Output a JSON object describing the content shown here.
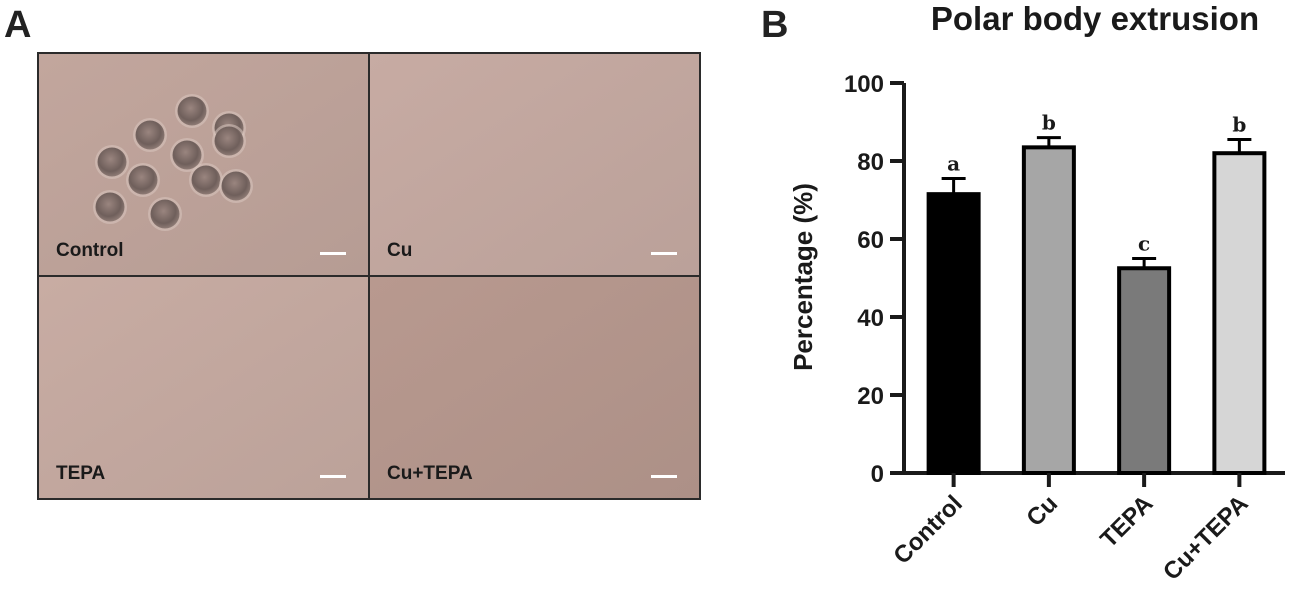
{
  "panel_a": {
    "letter": "A",
    "images": [
      {
        "label": "Control",
        "bg": "#c2a69d"
      },
      {
        "label": "Cu",
        "bg": "#c7aba3"
      },
      {
        "label": "TEPA",
        "bg": "#c8aca3"
      },
      {
        "label": "Cu+TEPA",
        "bg": "#b8998f"
      }
    ]
  },
  "panel_b": {
    "letter": "B"
  },
  "chart_data": {
    "type": "bar",
    "title": "Polar body extrusion",
    "xlabel": "",
    "ylabel": "Percentage (%)",
    "ylim": [
      0,
      100
    ],
    "yticks": [
      0,
      20,
      40,
      60,
      80,
      100
    ],
    "categories": [
      "Control",
      "Cu",
      "TEPA",
      "Cu+TEPA"
    ],
    "values": [
      71.5,
      83.5,
      52.5,
      82
    ],
    "errors": [
      4,
      2.5,
      2.5,
      3.5
    ],
    "significance": [
      "a",
      "b",
      "c",
      "b"
    ],
    "colors": [
      "#000000",
      "#a6a6a6",
      "#7a7a7a",
      "#d6d6d6"
    ],
    "grid": false,
    "legend": "none"
  }
}
